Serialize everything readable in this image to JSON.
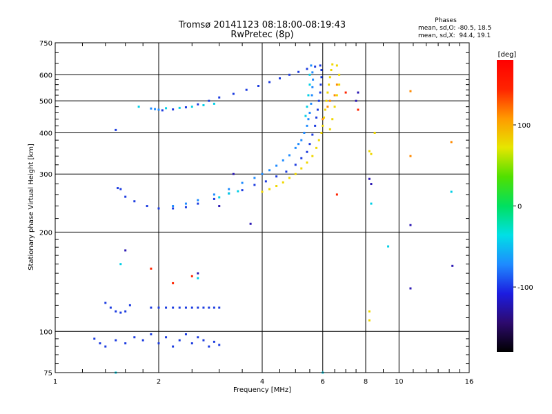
{
  "chart_data": {
    "type": "scatter",
    "title": "Tromsø 20141123 08:18:00-08:19:43",
    "subtitle": "RwPretec (8p)",
    "xlabel": "Frequency [MHz]",
    "ylabel": "Stationary phase Virtual Height [km]",
    "x_scale": "log",
    "y_scale": "log",
    "xlim": [
      1,
      16
    ],
    "ylim": [
      75,
      750
    ],
    "x_ticks": [
      1,
      2,
      4,
      6,
      8,
      10,
      16
    ],
    "y_ticks": [
      75,
      100,
      200,
      300,
      400,
      500,
      600,
      750
    ],
    "grid": true,
    "phases_note": {
      "heading": "Phases",
      "line1": "mean, sd,O: -80.5, 18.5",
      "line2": "mean, sd,X:  94.4, 19.1"
    },
    "colorbar": {
      "label": "[deg]",
      "range": [
        -180,
        180
      ],
      "ticks": [
        -100,
        0,
        100
      ],
      "colors": [
        "#000000",
        "#2d0a6e",
        "#1c1ce0",
        "#1e8bff",
        "#00e0e6",
        "#00e060",
        "#50e000",
        "#e6e600",
        "#ff9a00",
        "#ff2400",
        "#ff0000"
      ]
    },
    "series": [
      {
        "color": "#1c3ce0",
        "points": [
          [
            2.05,
            468
          ],
          [
            2.2,
            471
          ],
          [
            2.4,
            478
          ],
          [
            2.6,
            488
          ],
          [
            2.8,
            500
          ],
          [
            3.0,
            512
          ],
          [
            3.3,
            525
          ],
          [
            3.6,
            540
          ],
          [
            3.9,
            555
          ],
          [
            4.2,
            570
          ],
          [
            4.5,
            585
          ],
          [
            4.8,
            600
          ],
          [
            5.1,
            612
          ],
          [
            5.4,
            625
          ],
          [
            5.7,
            635
          ],
          [
            5.9,
            640
          ],
          [
            5.95,
            620
          ],
          [
            5.95,
            590
          ],
          [
            5.92,
            560
          ],
          [
            5.9,
            530
          ],
          [
            5.85,
            500
          ],
          [
            5.8,
            470
          ],
          [
            5.75,
            445
          ],
          [
            5.7,
            420
          ],
          [
            5.6,
            395
          ],
          [
            5.5,
            370
          ],
          [
            5.4,
            350
          ],
          [
            5.2,
            335
          ],
          [
            5.0,
            320
          ],
          [
            4.7,
            305
          ],
          [
            4.4,
            295
          ],
          [
            4.1,
            285
          ],
          [
            3.8,
            278
          ],
          [
            3.5,
            268
          ],
          [
            3.2,
            262
          ],
          [
            2.9,
            252
          ],
          [
            2.6,
            244
          ],
          [
            2.4,
            238
          ],
          [
            2.2,
            236
          ],
          [
            2.0,
            236
          ],
          [
            1.85,
            240
          ],
          [
            1.7,
            248
          ],
          [
            1.6,
            256
          ],
          [
            1.55,
            270
          ],
          [
            1.52,
            272
          ],
          [
            1.5,
            408
          ]
        ]
      },
      {
        "color": "#1e8bff",
        "points": [
          [
            5.55,
            640
          ],
          [
            5.6,
            610
          ],
          [
            5.62,
            580
          ],
          [
            5.6,
            550
          ],
          [
            5.58,
            520
          ],
          [
            5.55,
            490
          ],
          [
            5.5,
            460
          ],
          [
            5.45,
            440
          ],
          [
            5.4,
            420
          ],
          [
            5.3,
            400
          ],
          [
            5.2,
            380
          ],
          [
            5.1,
            370
          ],
          [
            5.0,
            360
          ],
          [
            4.8,
            342
          ],
          [
            4.6,
            330
          ],
          [
            4.4,
            318
          ],
          [
            4.2,
            308
          ],
          [
            4.0,
            300
          ],
          [
            3.8,
            292
          ],
          [
            3.5,
            282
          ],
          [
            3.2,
            270
          ],
          [
            2.9,
            260
          ],
          [
            2.6,
            250
          ],
          [
            2.4,
            244
          ],
          [
            2.2,
            240
          ],
          [
            1.9,
            474
          ],
          [
            1.95,
            472
          ],
          [
            2.0,
            470
          ]
        ]
      },
      {
        "color": "#00cfe6",
        "points": [
          [
            2.1,
            475
          ],
          [
            2.3,
            476
          ],
          [
            2.5,
            480
          ],
          [
            2.7,
            485
          ],
          [
            2.9,
            490
          ],
          [
            1.75,
            480
          ],
          [
            3.0,
            255
          ],
          [
            3.2,
            262
          ],
          [
            3.4,
            266
          ],
          [
            5.5,
            600
          ],
          [
            5.5,
            560
          ],
          [
            5.45,
            520
          ],
          [
            5.4,
            480
          ],
          [
            5.35,
            450
          ]
        ]
      },
      {
        "color": "#f0d800",
        "points": [
          [
            4.0,
            265
          ],
          [
            4.2,
            270
          ],
          [
            4.4,
            276
          ],
          [
            4.6,
            283
          ],
          [
            4.8,
            292
          ],
          [
            5.0,
            300
          ],
          [
            5.2,
            312
          ],
          [
            5.4,
            325
          ],
          [
            5.6,
            340
          ],
          [
            5.75,
            360
          ],
          [
            5.85,
            380
          ],
          [
            5.95,
            400
          ],
          [
            6.0,
            420
          ],
          [
            6.05,
            445
          ],
          [
            6.1,
            470
          ],
          [
            6.15,
            500
          ],
          [
            6.2,
            530
          ],
          [
            6.25,
            560
          ],
          [
            6.3,
            590
          ],
          [
            6.35,
            620
          ],
          [
            6.4,
            645
          ],
          [
            6.6,
            640
          ],
          [
            6.7,
            600
          ],
          [
            6.7,
            560
          ],
          [
            6.6,
            520
          ],
          [
            6.5,
            480
          ],
          [
            6.4,
            440
          ],
          [
            6.3,
            410
          ],
          [
            8.2,
            352
          ],
          [
            8.3,
            345
          ],
          [
            8.5,
            400
          ],
          [
            8.2,
            115
          ],
          [
            8.2,
            108
          ]
        ]
      },
      {
        "color": "#ff8a00",
        "points": [
          [
            6.0,
            440
          ],
          [
            6.2,
            480
          ],
          [
            6.3,
            500
          ],
          [
            6.5,
            520
          ],
          [
            6.6,
            560
          ],
          [
            10.8,
            535
          ],
          [
            10.8,
            340
          ],
          [
            14.2,
            375
          ]
        ]
      },
      {
        "color": "#1c3ce0",
        "points": [
          [
            1.4,
            122
          ],
          [
            1.45,
            118
          ],
          [
            1.5,
            115
          ],
          [
            1.55,
            114
          ],
          [
            1.6,
            115
          ],
          [
            1.65,
            120
          ],
          [
            1.9,
            118
          ],
          [
            2.0,
            118
          ],
          [
            2.1,
            118
          ],
          [
            2.2,
            118
          ],
          [
            2.3,
            118
          ],
          [
            2.4,
            118
          ],
          [
            2.5,
            118
          ],
          [
            2.6,
            118
          ],
          [
            2.7,
            118
          ],
          [
            2.8,
            118
          ],
          [
            2.9,
            118
          ],
          [
            3.0,
            118
          ],
          [
            1.3,
            95
          ],
          [
            1.35,
            92
          ],
          [
            1.4,
            90
          ],
          [
            1.5,
            94
          ],
          [
            1.6,
            92
          ],
          [
            1.7,
            96
          ],
          [
            1.8,
            94
          ],
          [
            1.9,
            98
          ],
          [
            2.0,
            92
          ],
          [
            2.1,
            96
          ],
          [
            2.2,
            90
          ],
          [
            2.3,
            94
          ],
          [
            2.4,
            98
          ],
          [
            2.5,
            92
          ],
          [
            2.6,
            96
          ],
          [
            2.7,
            94
          ],
          [
            2.8,
            90
          ],
          [
            2.9,
            93
          ],
          [
            3.0,
            91
          ]
        ]
      },
      {
        "color": "#2d1ab4",
        "points": [
          [
            1.6,
            176
          ],
          [
            2.6,
            150
          ],
          [
            3.0,
            240
          ],
          [
            3.3,
            300
          ],
          [
            3.7,
            212
          ],
          [
            7.5,
            500
          ],
          [
            7.6,
            530
          ],
          [
            8.2,
            290
          ],
          [
            8.3,
            280
          ],
          [
            10.8,
            210
          ],
          [
            10.8,
            135
          ],
          [
            14.3,
            158
          ]
        ]
      },
      {
        "color": "#ff2400",
        "points": [
          [
            1.9,
            155
          ],
          [
            2.2,
            140
          ],
          [
            2.5,
            147
          ],
          [
            6.6,
            260
          ],
          [
            7.6,
            470
          ],
          [
            7.0,
            530
          ]
        ]
      },
      {
        "color": "#00cfe6",
        "points": [
          [
            1.55,
            160
          ],
          [
            2.6,
            145
          ],
          [
            8.3,
            244
          ],
          [
            9.3,
            181
          ],
          [
            14.2,
            265
          ],
          [
            1.5,
            75
          ],
          [
            6.0,
            75
          ]
        ]
      }
    ]
  }
}
